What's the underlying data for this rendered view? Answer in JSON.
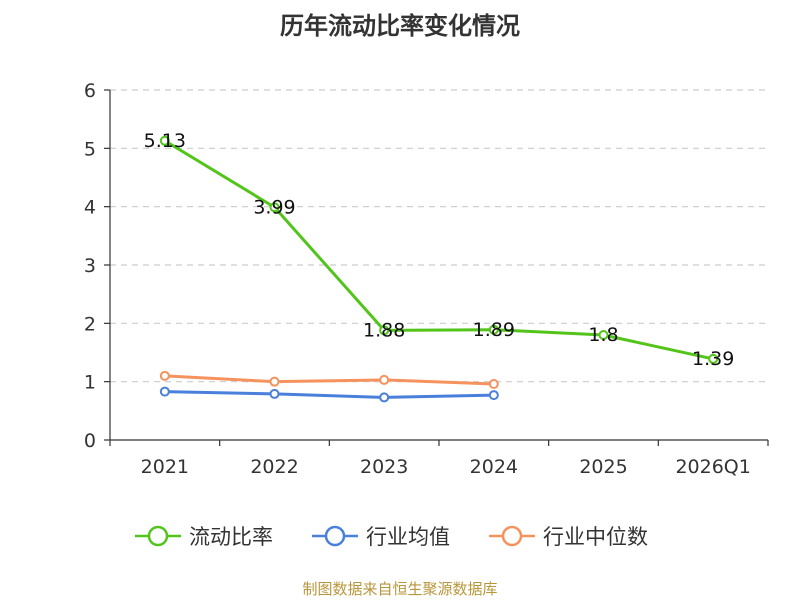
{
  "chart_data": {
    "type": "line",
    "title": "历年流动比率变化情况",
    "categories": [
      "2021",
      "2022",
      "2023",
      "2024",
      "2025",
      "2026Q1"
    ],
    "y_ticks": [
      "0",
      "1",
      "2",
      "3",
      "4",
      "5",
      "6"
    ],
    "ylim": [
      0,
      6
    ],
    "grid": "horizontal dashed",
    "legend_position": "bottom",
    "series": [
      {
        "name": "流动比率",
        "color": "#52c41a",
        "values": [
          5.13,
          3.99,
          1.88,
          1.89,
          1.8,
          1.39
        ],
        "labels": [
          "5.13",
          "3.99",
          "1.88",
          "1.89",
          "1.8",
          "1.39"
        ],
        "show_labels": true
      },
      {
        "name": "行业均值",
        "color": "#4a7fdc",
        "values": [
          0.83,
          0.79,
          0.73,
          0.77,
          null,
          null
        ],
        "show_labels": false
      },
      {
        "name": "行业中位数",
        "color": "#f5925e",
        "values": [
          1.1,
          1.0,
          1.03,
          0.96,
          null,
          null
        ],
        "show_labels": false
      }
    ]
  },
  "source_text": "制图数据来自恒生聚源数据库"
}
